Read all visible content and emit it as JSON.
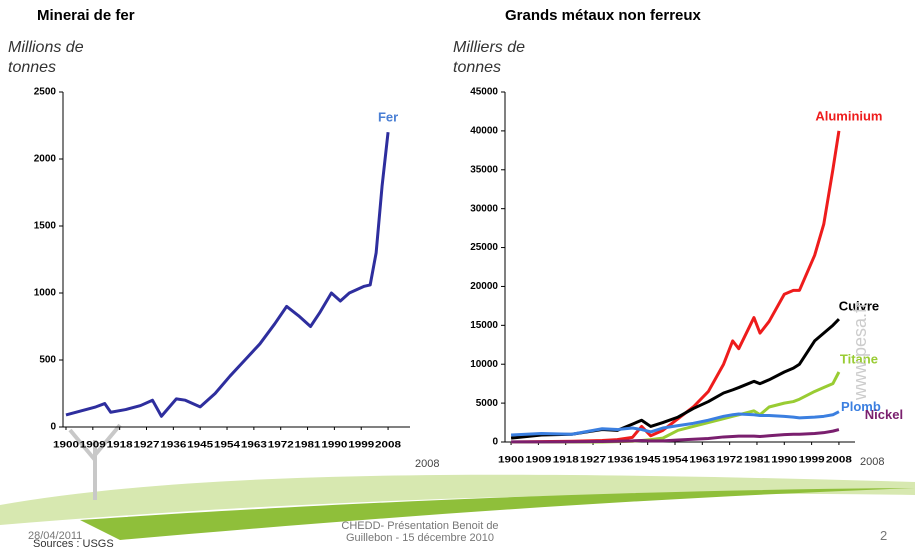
{
  "chart_data": [
    {
      "type": "line",
      "title": "Minerai de fer",
      "y_label": "Millions de tonnes",
      "x": [
        1900,
        1905,
        1910,
        1913,
        1915,
        1920,
        1925,
        1929,
        1932,
        1937,
        1940,
        1945,
        1950,
        1955,
        1960,
        1965,
        1970,
        1974,
        1978,
        1982,
        1985,
        1989,
        1992,
        1995,
        2000,
        2002,
        2004,
        2006,
        2008
      ],
      "series": [
        {
          "name": "Fer",
          "color": "#2e2e9e",
          "label_color": "#4a7fd4",
          "values": [
            90,
            120,
            150,
            175,
            110,
            130,
            160,
            200,
            80,
            210,
            200,
            150,
            250,
            380,
            500,
            620,
            770,
            900,
            830,
            750,
            850,
            1000,
            940,
            1000,
            1050,
            1060,
            1300,
            1800,
            2200
          ]
        }
      ],
      "xlim": [
        1899,
        2012
      ],
      "ylim": [
        0,
        2500
      ],
      "xticks": [
        1900,
        1909,
        1918,
        1927,
        1936,
        1945,
        1954,
        1963,
        1972,
        1981,
        1990,
        1999,
        2008
      ],
      "yticks": [
        0,
        500,
        1000,
        1500,
        2000,
        2500
      ],
      "annotations": [
        "2008"
      ]
    },
    {
      "type": "line",
      "title": "Grands métaux non ferreux",
      "y_label": "Milliers de tonnes",
      "x": [
        1900,
        1910,
        1920,
        1930,
        1935,
        1940,
        1943,
        1946,
        1950,
        1955,
        1960,
        1965,
        1970,
        1973,
        1975,
        1980,
        1982,
        1985,
        1990,
        1993,
        1995,
        2000,
        2003,
        2006,
        2008
      ],
      "series": [
        {
          "name": "Aluminium",
          "color": "#ee1c1c",
          "values": [
            0,
            50,
            100,
            200,
            300,
            600,
            2000,
            800,
            1500,
            3000,
            4500,
            6500,
            10000,
            13000,
            12000,
            16000,
            14000,
            15500,
            19000,
            19500,
            19500,
            24000,
            28000,
            35000,
            40000
          ]
        },
        {
          "name": "Cuivre",
          "color": "#000000",
          "values": [
            500,
            900,
            1000,
            1600,
            1500,
            2300,
            2800,
            2000,
            2500,
            3200,
            4300,
            5200,
            6300,
            6700,
            7000,
            7800,
            7500,
            8000,
            9000,
            9500,
            10000,
            13000,
            14000,
            15000,
            15800
          ]
        },
        {
          "name": "Titane",
          "color": "#99cc33",
          "values": [
            0,
            0,
            0,
            0,
            50,
            100,
            200,
            300,
            500,
            1500,
            2000,
            2500,
            3000,
            3300,
            3500,
            4000,
            3500,
            4500,
            5000,
            5200,
            5500,
            6500,
            7000,
            7500,
            9000
          ]
        },
        {
          "name": "Plomb",
          "color": "#3b7fe0",
          "values": [
            900,
            1100,
            1000,
            1700,
            1600,
            1800,
            1600,
            1300,
            1800,
            2100,
            2400,
            2800,
            3300,
            3500,
            3600,
            3500,
            3400,
            3400,
            3300,
            3200,
            3100,
            3200,
            3300,
            3500,
            3900
          ]
        },
        {
          "name": "Nickel",
          "color": "#7a1f6e",
          "values": [
            10,
            20,
            30,
            60,
            100,
            150,
            200,
            150,
            150,
            250,
            350,
            450,
            650,
            700,
            750,
            750,
            700,
            800,
            950,
            1000,
            1000,
            1100,
            1200,
            1400,
            1600
          ]
        }
      ],
      "xlim": [
        1898,
        2010
      ],
      "ylim": [
        0,
        45000
      ],
      "xticks": [
        1900,
        1909,
        1918,
        1927,
        1936,
        1945,
        1954,
        1963,
        1972,
        1981,
        1990,
        1999,
        2008
      ],
      "yticks": [
        0,
        5000,
        10000,
        15000,
        20000,
        25000,
        30000,
        35000,
        40000,
        45000
      ],
      "annotations": [
        "2008"
      ]
    }
  ],
  "footer": {
    "date": "28/04/2011",
    "sources": "Sources : USGS",
    "presentation": "CHEDD- Présentation Benoit de Guillebon - 15 décembre 2010",
    "page": "2",
    "watermark": "www.pesa.fr"
  }
}
